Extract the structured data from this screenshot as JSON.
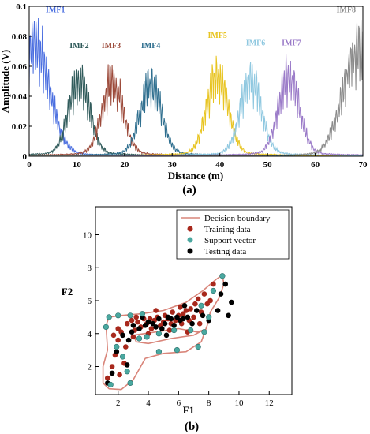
{
  "chart_data": [
    {
      "type": "line",
      "xlabel": "Distance (m)",
      "ylabel": "Amplitude (V)",
      "xlim": [
        0,
        70
      ],
      "ylim": [
        0,
        0.1
      ],
      "xticks": [
        "0",
        "10",
        "20",
        "30",
        "40",
        "50",
        "60",
        "70"
      ],
      "yticks": [
        "0",
        "0.02",
        "0.04",
        "0.06",
        "0.08",
        "0.1"
      ],
      "panel_label": "(a)",
      "grid": false,
      "series": [
        {
          "name": "IMF1",
          "color": "#4a6ee0",
          "center": 1,
          "peak": 0.1,
          "label_x": 5.5,
          "label_y": 0.096
        },
        {
          "name": "IMF2",
          "color": "#2f5a5a",
          "center": 10.5,
          "peak": 0.064,
          "label_x": 10.5,
          "label_y": 0.072
        },
        {
          "name": "IMF3",
          "color": "#9c4a3a",
          "center": 17.5,
          "peak": 0.064,
          "label_x": 17.2,
          "label_y": 0.072
        },
        {
          "name": "IMF4",
          "color": "#2f6f8f",
          "center": 25.5,
          "peak": 0.062,
          "label_x": 25.5,
          "label_y": 0.072
        },
        {
          "name": "IMF5",
          "color": "#e8c420",
          "center": 39.5,
          "peak": 0.07,
          "label_x": 39.5,
          "label_y": 0.079
        },
        {
          "name": "IMF6",
          "color": "#8fc8e0",
          "center": 46.5,
          "peak": 0.066,
          "label_x": 47.5,
          "label_y": 0.074
        },
        {
          "name": "IMF7",
          "color": "#9a7ac8",
          "center": 54.5,
          "peak": 0.068,
          "label_x": 55,
          "label_y": 0.074
        },
        {
          "name": "IMF8",
          "color": "#8a8a8a",
          "center": 69,
          "peak": 0.094,
          "label_x": 66.5,
          "label_y": 0.096
        }
      ]
    },
    {
      "type": "scatter",
      "xlabel": "F1",
      "ylabel": "F2",
      "xlim": [
        0.5,
        13.5
      ],
      "ylim": [
        0.3,
        11.7
      ],
      "xticks": [
        2,
        4,
        6,
        8,
        10,
        12
      ],
      "yticks": [
        2,
        4,
        6,
        8,
        10
      ],
      "panel_label": "(b)",
      "legend_position": "top-right",
      "legend": [
        {
          "label": "Decision boundary",
          "kind": "line",
          "color": "#d9857a"
        },
        {
          "label": "Training data",
          "kind": "dot",
          "color": "#a8281c"
        },
        {
          "label": "Support vector",
          "kind": "dot",
          "color": "#4aa8a0"
        },
        {
          "label": "Testing data",
          "kind": "dot",
          "color": "#000000"
        }
      ],
      "boundary_outer": [
        [
          1.0,
          1.0
        ],
        [
          1.0,
          2.0
        ],
        [
          1.3,
          3.0
        ],
        [
          1.2,
          4.5
        ],
        [
          1.4,
          5.0
        ],
        [
          2.2,
          5.1
        ],
        [
          3.5,
          5.2
        ],
        [
          5.0,
          5.4
        ],
        [
          6.5,
          5.9
        ],
        [
          7.6,
          6.6
        ],
        [
          8.5,
          7.3
        ],
        [
          8.9,
          7.55
        ],
        [
          9.0,
          7.0
        ],
        [
          8.7,
          6.2
        ],
        [
          8.1,
          5.3
        ],
        [
          7.9,
          4.5
        ],
        [
          7.5,
          3.5
        ],
        [
          6.5,
          2.9
        ],
        [
          5.0,
          2.8
        ],
        [
          3.8,
          2.5
        ],
        [
          3.0,
          1.2
        ],
        [
          2.2,
          0.6
        ],
        [
          1.4,
          0.65
        ],
        [
          1.0,
          1.0
        ]
      ],
      "boundary_inner": [
        [
          3.0,
          3.9
        ],
        [
          4.5,
          4.1
        ],
        [
          6.0,
          4.3
        ],
        [
          7.2,
          4.1
        ],
        [
          7.6,
          4.2
        ],
        [
          7.0,
          3.9
        ],
        [
          5.5,
          3.7
        ],
        [
          4.0,
          3.4
        ],
        [
          3.2,
          3.5
        ],
        [
          3.0,
          3.9
        ]
      ],
      "support_vectors": [
        [
          1.2,
          4.4
        ],
        [
          1.4,
          5.0
        ],
        [
          2.0,
          5.1
        ],
        [
          2.8,
          5.1
        ],
        [
          3.6,
          5.2
        ],
        [
          1.9,
          3.2
        ],
        [
          2.3,
          2.6
        ],
        [
          2.6,
          1.7
        ],
        [
          2.8,
          1.0
        ],
        [
          1.5,
          0.9
        ],
        [
          3.4,
          3.7
        ],
        [
          3.9,
          3.8
        ],
        [
          4.7,
          4.0
        ],
        [
          5.7,
          4.2
        ],
        [
          6.8,
          4.2
        ],
        [
          7.3,
          3.2
        ],
        [
          7.7,
          4.1
        ],
        [
          8.0,
          5.0
        ],
        [
          8.3,
          6.6
        ],
        [
          8.9,
          7.5
        ],
        [
          5.9,
          3.0
        ],
        [
          4.7,
          2.9
        ],
        [
          7.5,
          5.7
        ]
      ],
      "training_data": [
        [
          1.3,
          1.3
        ],
        [
          1.6,
          2.0
        ],
        [
          1.8,
          2.7
        ],
        [
          2.0,
          3.6
        ],
        [
          2.2,
          4.1
        ],
        [
          2.5,
          3.2
        ],
        [
          2.6,
          4.6
        ],
        [
          2.9,
          4.8
        ],
        [
          3.1,
          4.2
        ],
        [
          3.3,
          4.7
        ],
        [
          3.5,
          4.4
        ],
        [
          3.7,
          4.9
        ],
        [
          3.9,
          4.6
        ],
        [
          4.1,
          4.9
        ],
        [
          4.2,
          4.3
        ],
        [
          4.4,
          4.8
        ],
        [
          4.6,
          5.0
        ],
        [
          4.8,
          4.5
        ],
        [
          5.0,
          4.7
        ],
        [
          5.1,
          5.1
        ],
        [
          5.3,
          4.9
        ],
        [
          5.5,
          4.6
        ],
        [
          5.6,
          5.3
        ],
        [
          5.8,
          4.8
        ],
        [
          6.0,
          5.1
        ],
        [
          6.2,
          4.6
        ],
        [
          6.3,
          5.2
        ],
        [
          6.5,
          5.4
        ],
        [
          6.7,
          4.8
        ],
        [
          6.8,
          5.5
        ],
        [
          7.0,
          5.0
        ],
        [
          7.1,
          5.8
        ],
        [
          7.3,
          6.1
        ],
        [
          7.5,
          5.3
        ],
        [
          7.7,
          6.4
        ],
        [
          7.9,
          5.8
        ],
        [
          8.1,
          6.0
        ],
        [
          8.3,
          7.0
        ],
        [
          2.4,
          2.2
        ],
        [
          2.1,
          1.5
        ],
        [
          3.0,
          3.8
        ],
        [
          4.0,
          4.0
        ],
        [
          5.4,
          4.2
        ],
        [
          6.6,
          4.1
        ],
        [
          7.4,
          4.6
        ],
        [
          3.2,
          5.0
        ],
        [
          4.5,
          5.4
        ],
        [
          6.1,
          5.6
        ],
        [
          2.0,
          4.3
        ],
        [
          1.7,
          3.9
        ]
      ],
      "testing_data": [
        [
          1.3,
          1.0
        ],
        [
          1.6,
          1.6
        ],
        [
          1.9,
          2.9
        ],
        [
          2.3,
          3.9
        ],
        [
          2.7,
          3.6
        ],
        [
          3.0,
          4.5
        ],
        [
          3.4,
          4.3
        ],
        [
          3.6,
          5.0
        ],
        [
          3.8,
          4.5
        ],
        [
          4.0,
          4.7
        ],
        [
          4.3,
          4.6
        ],
        [
          4.5,
          4.4
        ],
        [
          4.7,
          4.9
        ],
        [
          4.9,
          4.3
        ],
        [
          5.1,
          4.6
        ],
        [
          5.3,
          5.0
        ],
        [
          5.5,
          4.9
        ],
        [
          5.7,
          4.5
        ],
        [
          5.9,
          5.0
        ],
        [
          6.1,
          4.8
        ],
        [
          6.3,
          4.9
        ],
        [
          6.6,
          5.0
        ],
        [
          6.9,
          4.6
        ],
        [
          7.2,
          5.4
        ],
        [
          7.6,
          5.1
        ],
        [
          8.0,
          4.8
        ],
        [
          8.6,
          5.4
        ],
        [
          8.8,
          6.4
        ],
        [
          9.1,
          7.0
        ],
        [
          9.5,
          5.9
        ],
        [
          9.3,
          5.1
        ],
        [
          2.9,
          4.1
        ],
        [
          2.6,
          2.1
        ],
        [
          5.2,
          3.9
        ],
        [
          6.4,
          5.7
        ]
      ]
    }
  ]
}
